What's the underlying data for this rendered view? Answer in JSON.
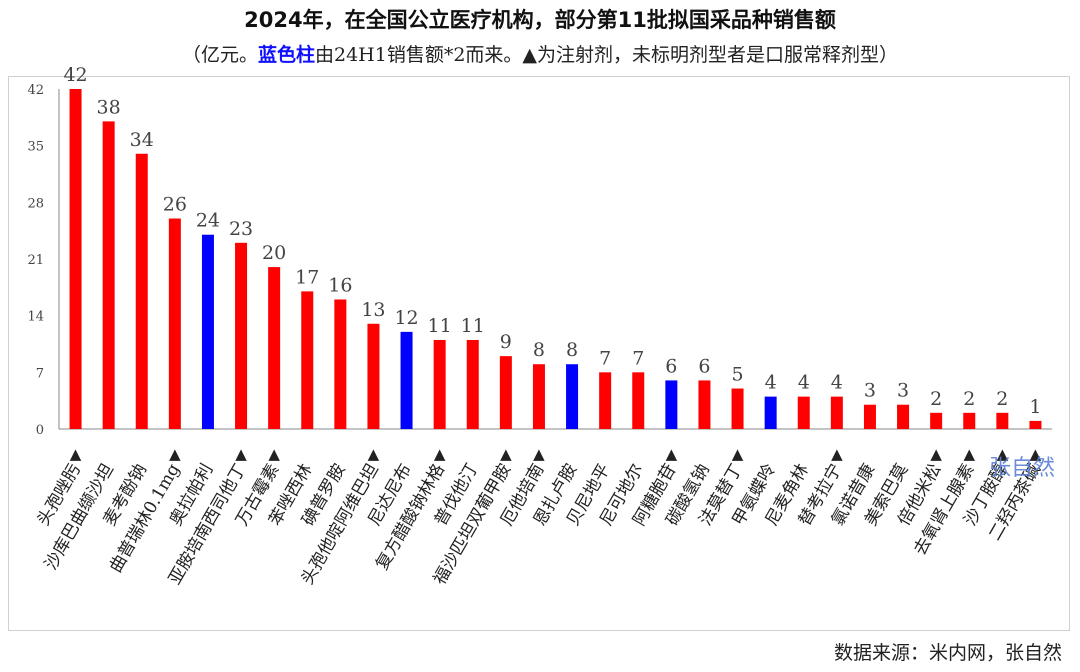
{
  "title": "2024年，在全国公立医疗机构，部分第11批拟国采品种销售额",
  "subtitle": {
    "prefix": "（亿元。",
    "highlight": "蓝色柱",
    "suffix": "由24H1销售额*2而来。▲为注射剂，未标明剂型者是口服常释剂型）"
  },
  "source": "数据来源：米内网，张自然",
  "watermark": "张自然",
  "colors": {
    "red": "#ff0000",
    "blue": "#0000ff",
    "axis": "#888888",
    "label": "#444444"
  },
  "chart_data": {
    "type": "bar",
    "ylim": [
      0,
      42
    ],
    "yticks": [
      0,
      7,
      14,
      21,
      28,
      35,
      42
    ],
    "grid": false,
    "categories": [
      "头孢唑肟",
      "沙库巴曲缬沙坦",
      "麦考酚钠",
      "曲普瑞林0.1mg",
      "奥拉帕利",
      "亚胺培南西司他丁",
      "万古霉素",
      "苯唑西林",
      "碘普罗胺",
      "头孢他啶阿维巴坦",
      "尼达尼布",
      "复方醋酸钠林格",
      "普伐他汀",
      "福沙匹坦双葡甲胺",
      "厄他培南",
      "恩扎卢胺",
      "贝尼地平",
      "尼可地尔",
      "阿糖胞苷",
      "碳酸氢钠",
      "法莫替丁",
      "甲氨蝶呤",
      "尼麦角林",
      "替考拉宁",
      "氯诺昔康",
      "美索巴莫",
      "倍他米松",
      "去氧肾上腺素",
      "沙丁胺醇",
      "二羟丙茶碱"
    ],
    "values": [
      42,
      38,
      34,
      26,
      24,
      23,
      20,
      17,
      16,
      13,
      12,
      11,
      11,
      9,
      8,
      8,
      7,
      7,
      6,
      6,
      5,
      4,
      4,
      4,
      3,
      3,
      2,
      2,
      2,
      1
    ],
    "bar_colors": [
      "red",
      "red",
      "red",
      "red",
      "blue",
      "red",
      "red",
      "red",
      "red",
      "red",
      "blue",
      "red",
      "red",
      "red",
      "red",
      "blue",
      "red",
      "red",
      "blue",
      "red",
      "red",
      "blue",
      "red",
      "red",
      "red",
      "red",
      "red",
      "red",
      "red",
      "red"
    ],
    "injection": [
      true,
      false,
      false,
      true,
      false,
      true,
      true,
      false,
      false,
      true,
      false,
      true,
      false,
      true,
      true,
      false,
      false,
      false,
      true,
      false,
      true,
      false,
      false,
      true,
      false,
      false,
      true,
      true,
      true,
      true
    ]
  }
}
